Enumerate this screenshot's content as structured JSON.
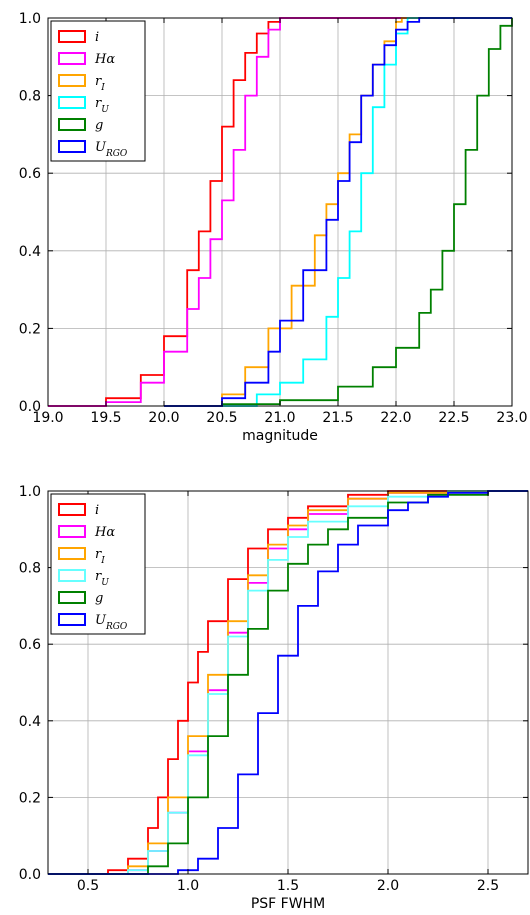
{
  "chart_data": [
    {
      "type": "line",
      "step": true,
      "xlabel": "magnitude",
      "ylabel": "",
      "xlim": [
        19.0,
        23.0
      ],
      "ylim": [
        0.0,
        1.0
      ],
      "xticks": [
        19.0,
        19.5,
        20.0,
        20.5,
        21.0,
        21.5,
        22.0,
        22.5,
        23.0
      ],
      "xtick_labels": [
        "19.0",
        "19.5",
        "20.0",
        "20.5",
        "21.0",
        "21.5",
        "22.0",
        "22.5",
        "23.0"
      ],
      "yticks": [
        0.0,
        0.2,
        0.4,
        0.6,
        0.8,
        1.0
      ],
      "ytick_labels": [
        "0.0",
        "0.2",
        "0.4",
        "0.6",
        "0.8",
        "1.0"
      ],
      "grid": true,
      "legend_position": "top-left",
      "series": [
        {
          "name": "i",
          "color": "#ff0000",
          "x": [
            19.0,
            19.5,
            19.8,
            20.0,
            20.2,
            20.3,
            20.4,
            20.5,
            20.6,
            20.7,
            20.8,
            20.9,
            21.0,
            23.0
          ],
          "y": [
            0.0,
            0.02,
            0.08,
            0.18,
            0.35,
            0.45,
            0.58,
            0.72,
            0.84,
            0.91,
            0.96,
            0.99,
            1.0,
            1.0
          ]
        },
        {
          "name": "Hα",
          "color": "#ff00ff",
          "x": [
            19.0,
            19.5,
            19.8,
            20.0,
            20.2,
            20.3,
            20.4,
            20.5,
            20.6,
            20.7,
            20.8,
            20.9,
            21.0,
            23.0
          ],
          "y": [
            0.0,
            0.01,
            0.06,
            0.14,
            0.25,
            0.33,
            0.43,
            0.53,
            0.66,
            0.8,
            0.9,
            0.97,
            1.0,
            1.0
          ]
        },
        {
          "name": "r_I",
          "color": "#ffa500",
          "x": [
            20.3,
            20.5,
            20.7,
            20.9,
            21.1,
            21.3,
            21.4,
            21.5,
            21.6,
            21.7,
            21.8,
            21.9,
            22.0,
            22.05,
            22.1,
            23.0
          ],
          "y": [
            0.0,
            0.03,
            0.1,
            0.2,
            0.31,
            0.44,
            0.52,
            0.6,
            0.7,
            0.8,
            0.88,
            0.94,
            0.99,
            1.0,
            1.0,
            1.0
          ]
        },
        {
          "name": "r_U",
          "color": "#00ffff",
          "x": [
            20.5,
            20.8,
            21.0,
            21.2,
            21.4,
            21.5,
            21.6,
            21.7,
            21.8,
            21.9,
            22.0,
            22.1,
            23.0
          ],
          "y": [
            0.0,
            0.03,
            0.06,
            0.12,
            0.23,
            0.33,
            0.45,
            0.6,
            0.77,
            0.88,
            0.96,
            1.0,
            1.0
          ]
        },
        {
          "name": "g",
          "color": "#008000",
          "x": [
            20.0,
            20.5,
            21.0,
            21.5,
            21.8,
            22.0,
            22.2,
            22.3,
            22.4,
            22.5,
            22.6,
            22.7,
            22.8,
            22.9,
            23.0
          ],
          "y": [
            0.0,
            0.005,
            0.015,
            0.05,
            0.1,
            0.15,
            0.24,
            0.3,
            0.4,
            0.52,
            0.66,
            0.8,
            0.92,
            0.98,
            1.0
          ]
        },
        {
          "name": "U_RGO",
          "color": "#0000ff",
          "x": [
            20.0,
            20.5,
            20.7,
            20.9,
            21.0,
            21.2,
            21.4,
            21.5,
            21.6,
            21.7,
            21.8,
            21.9,
            22.0,
            22.1,
            22.2,
            23.0
          ],
          "y": [
            0.0,
            0.02,
            0.06,
            0.14,
            0.22,
            0.35,
            0.48,
            0.58,
            0.68,
            0.8,
            0.88,
            0.93,
            0.97,
            0.99,
            1.0,
            1.0
          ]
        }
      ]
    },
    {
      "type": "line",
      "step": true,
      "xlabel": "PSF FWHM",
      "ylabel": "",
      "xlim": [
        0.3,
        2.7
      ],
      "ylim": [
        0.0,
        1.0
      ],
      "xticks": [
        0.5,
        1.0,
        1.5,
        2.0,
        2.5
      ],
      "xtick_labels": [
        "0.5",
        "1.0",
        "1.5",
        "2.0",
        "2.5"
      ],
      "yticks": [
        0.0,
        0.2,
        0.4,
        0.6,
        0.8,
        1.0
      ],
      "ytick_labels": [
        "0.0",
        "0.2",
        "0.4",
        "0.6",
        "0.8",
        "1.0"
      ],
      "grid": true,
      "legend_position": "top-left",
      "series": [
        {
          "name": "i",
          "color": "#ff0000",
          "x": [
            0.3,
            0.6,
            0.7,
            0.8,
            0.85,
            0.9,
            0.95,
            1.0,
            1.05,
            1.1,
            1.2,
            1.3,
            1.4,
            1.5,
            1.6,
            1.8,
            2.0,
            2.2,
            2.7
          ],
          "y": [
            0.0,
            0.01,
            0.04,
            0.12,
            0.2,
            0.3,
            0.4,
            0.5,
            0.58,
            0.66,
            0.77,
            0.85,
            0.9,
            0.93,
            0.96,
            0.99,
            1.0,
            1.0,
            1.0
          ]
        },
        {
          "name": "Hα",
          "color": "#ff00ff",
          "x": [
            0.3,
            0.7,
            0.8,
            0.9,
            1.0,
            1.1,
            1.2,
            1.3,
            1.4,
            1.5,
            1.6,
            1.8,
            2.0,
            2.3,
            2.7
          ],
          "y": [
            0.0,
            0.01,
            0.06,
            0.16,
            0.32,
            0.48,
            0.63,
            0.76,
            0.85,
            0.9,
            0.94,
            0.98,
            0.995,
            1.0,
            1.0
          ]
        },
        {
          "name": "r_I",
          "color": "#ffa500",
          "x": [
            0.3,
            0.7,
            0.8,
            0.9,
            1.0,
            1.1,
            1.2,
            1.3,
            1.4,
            1.5,
            1.6,
            1.8,
            2.0,
            2.3,
            2.7
          ],
          "y": [
            0.0,
            0.02,
            0.08,
            0.2,
            0.36,
            0.52,
            0.66,
            0.78,
            0.86,
            0.91,
            0.95,
            0.98,
            0.995,
            1.0,
            1.0
          ]
        },
        {
          "name": "r_U",
          "color": "#66ffff",
          "x": [
            0.3,
            0.7,
            0.8,
            0.9,
            1.0,
            1.1,
            1.2,
            1.3,
            1.4,
            1.5,
            1.6,
            1.8,
            2.0,
            2.3,
            2.7
          ],
          "y": [
            0.0,
            0.01,
            0.06,
            0.16,
            0.31,
            0.47,
            0.62,
            0.74,
            0.82,
            0.88,
            0.92,
            0.96,
            0.985,
            1.0,
            1.0
          ]
        },
        {
          "name": "g",
          "color": "#008000",
          "x": [
            0.3,
            0.8,
            0.9,
            1.0,
            1.1,
            1.2,
            1.3,
            1.4,
            1.5,
            1.6,
            1.7,
            1.8,
            2.0,
            2.2,
            2.5,
            2.7
          ],
          "y": [
            0.0,
            0.02,
            0.08,
            0.2,
            0.36,
            0.52,
            0.64,
            0.74,
            0.81,
            0.86,
            0.9,
            0.93,
            0.97,
            0.99,
            1.0,
            1.0
          ]
        },
        {
          "name": "U_RGO",
          "color": "#0000ff",
          "x": [
            0.3,
            0.95,
            1.05,
            1.15,
            1.25,
            1.35,
            1.45,
            1.55,
            1.65,
            1.75,
            1.85,
            2.0,
            2.1,
            2.2,
            2.3,
            2.5,
            2.7
          ],
          "y": [
            0.0,
            0.01,
            0.04,
            0.12,
            0.26,
            0.42,
            0.57,
            0.7,
            0.79,
            0.86,
            0.91,
            0.95,
            0.97,
            0.985,
            0.995,
            1.0,
            1.0
          ]
        }
      ]
    }
  ]
}
